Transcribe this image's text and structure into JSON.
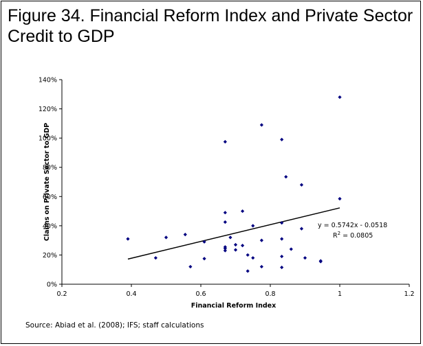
{
  "figure": {
    "title": "Figure 34. Financial Reform Index and Private Sector Credit to GDP",
    "source": "Source: Abiad et al. (2008); IFS; staff calculations"
  },
  "chart_data": {
    "type": "scatter",
    "title": "Figure 34. Financial Reform Index and Private Sector Credit to GDP",
    "xlabel": "Financial Reform Index",
    "ylabel": "Claims on Private Sector to GDP",
    "xlim": [
      0.2,
      1.2
    ],
    "ylim": [
      0,
      1.4
    ],
    "x_ticks": [
      0.2,
      0.4,
      0.6,
      0.8,
      1,
      1.2
    ],
    "x_tick_labels": [
      "0.2",
      "0.4",
      "0.6",
      "0.8",
      "1",
      "1.2"
    ],
    "y_ticks": [
      0,
      0.2,
      0.4,
      0.6,
      0.8,
      1.0,
      1.2,
      1.4
    ],
    "y_tick_labels": [
      "0%",
      "20%",
      "40%",
      "60%",
      "80%",
      "100%",
      "120%",
      "140%"
    ],
    "grid": false,
    "legend": "none",
    "trendline": {
      "slope": 0.5742,
      "intercept": -0.0518,
      "x_range": [
        0.39,
        1.0
      ],
      "equation_label": "y = 0.5742x - 0.0518",
      "r2_prefix": "R",
      "r2_suffix": " = 0.0805",
      "r2_exponent": "2"
    },
    "point_color": "#000080",
    "points": [
      {
        "x": 0.39,
        "y": 0.31
      },
      {
        "x": 0.47,
        "y": 0.18
      },
      {
        "x": 0.5,
        "y": 0.32
      },
      {
        "x": 0.555,
        "y": 0.34
      },
      {
        "x": 0.57,
        "y": 0.12
      },
      {
        "x": 0.61,
        "y": 0.175
      },
      {
        "x": 0.61,
        "y": 0.29
      },
      {
        "x": 0.67,
        "y": 0.975
      },
      {
        "x": 0.67,
        "y": 0.49
      },
      {
        "x": 0.67,
        "y": 0.425
      },
      {
        "x": 0.67,
        "y": 0.255
      },
      {
        "x": 0.67,
        "y": 0.245
      },
      {
        "x": 0.67,
        "y": 0.23
      },
      {
        "x": 0.685,
        "y": 0.32
      },
      {
        "x": 0.7,
        "y": 0.27
      },
      {
        "x": 0.7,
        "y": 0.235
      },
      {
        "x": 0.72,
        "y": 0.5
      },
      {
        "x": 0.72,
        "y": 0.265
      },
      {
        "x": 0.735,
        "y": 0.2
      },
      {
        "x": 0.735,
        "y": 0.09
      },
      {
        "x": 0.75,
        "y": 0.4
      },
      {
        "x": 0.75,
        "y": 0.18
      },
      {
        "x": 0.775,
        "y": 1.09
      },
      {
        "x": 0.775,
        "y": 0.3
      },
      {
        "x": 0.775,
        "y": 0.12
      },
      {
        "x": 0.833,
        "y": 0.99
      },
      {
        "x": 0.833,
        "y": 0.42
      },
      {
        "x": 0.833,
        "y": 0.31
      },
      {
        "x": 0.833,
        "y": 0.19
      },
      {
        "x": 0.833,
        "y": 0.115
      },
      {
        "x": 0.845,
        "y": 0.735
      },
      {
        "x": 0.86,
        "y": 0.24
      },
      {
        "x": 0.89,
        "y": 0.68
      },
      {
        "x": 0.89,
        "y": 0.38
      },
      {
        "x": 0.9,
        "y": 0.18
      },
      {
        "x": 0.945,
        "y": 0.16
      },
      {
        "x": 0.945,
        "y": 0.155
      },
      {
        "x": 1.0,
        "y": 1.28
      },
      {
        "x": 1.0,
        "y": 0.585
      }
    ]
  }
}
